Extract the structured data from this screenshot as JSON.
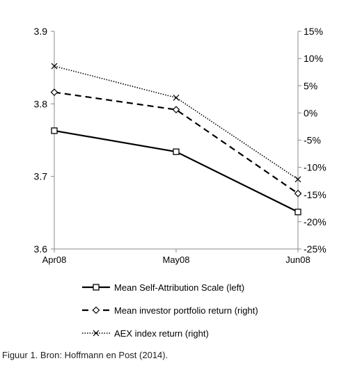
{
  "caption": "Figuur 1. Bron: Hoffmann en Post (2014).",
  "chart_data": {
    "type": "line",
    "categories": [
      "Apr08",
      "May08",
      "Jun08"
    ],
    "left_axis": {
      "min": 3.6,
      "max": 3.9,
      "ticks": [
        3.6,
        3.7,
        3.8,
        3.9
      ],
      "tick_labels": [
        "3.6",
        "3.7",
        "3.8",
        "3.9"
      ]
    },
    "right_axis": {
      "min": -25,
      "max": 15,
      "ticks": [
        -25,
        -20,
        -15,
        -10,
        -5,
        0,
        5,
        10,
        15
      ],
      "tick_labels": [
        "-25%",
        "-20%",
        "-15%",
        "-10%",
        "-5%",
        "0%",
        "5%",
        "10%",
        "15%"
      ]
    },
    "series": [
      {
        "name": "Mean Self-Attribution Scale (left)",
        "axis": "left",
        "values": [
          3.763,
          3.734,
          3.651
        ],
        "style": "solid",
        "marker": "square",
        "color": "#000000"
      },
      {
        "name": "Mean investor portfolio return (right)",
        "axis": "right",
        "values": [
          3.8,
          0.6,
          -14.8
        ],
        "style": "dashed",
        "marker": "diamond",
        "color": "#000000"
      },
      {
        "name": "AEX index return (right)",
        "axis": "right",
        "values": [
          8.6,
          2.8,
          -12.2
        ],
        "style": "dotted",
        "marker": "x",
        "color": "#000000"
      }
    ],
    "legend_position": "bottom",
    "grid": false
  }
}
